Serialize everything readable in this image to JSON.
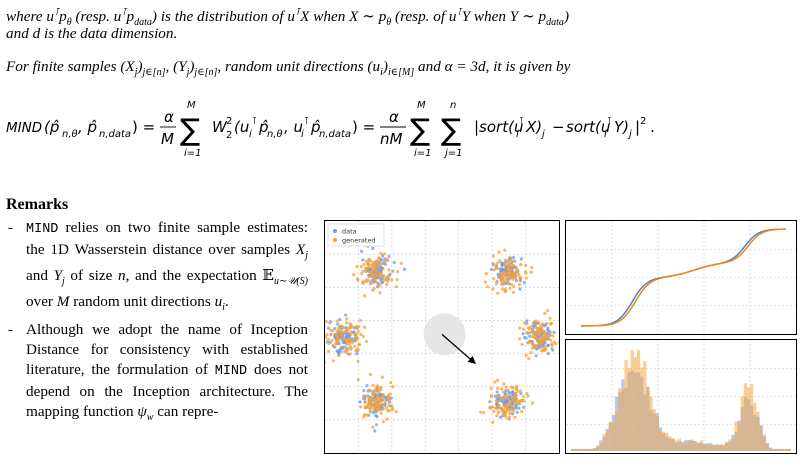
{
  "text": {
    "line1": "where u⊺p_θ (resp. u⊺p_data) is the distribution of u⊺X when X ∼ p_θ (resp. of u⊺Y when Y ∼ p_data)",
    "line2": "and d is the data dimension.",
    "line3": "For finite samples (X_j)_{j∈[n]}, (Y_j)_{j∈[n]}, random unit directions (u_i)_{i∈[M]} and α = 3d, it is given by",
    "equation": "MIND(p̂_{n,θ}, p̂_{n,data}) = α/M Σ_{i=1}^{M} W_2^2(u_i⊺p̂_{n,θ}, u_i⊺p̂_{n,data}) = α/(nM) Σ_{i=1}^{M} Σ_{j=1}^{n} |sort(u_i⊺X)_j − sort(u_i⊺Y)_j|^2 .",
    "remarks_heading": "Remarks",
    "bullet1": "MIND relies on two finite sample estimates: the 1D Wasserstein distance over samples X_j and Y_j of size n, and the expectation E_{u∼U(S)} over M random unit directions u_i.",
    "bullet2": "Although we adopt the name of Inception Distance for consistency with established literature, the formulation of MIND does not depend on the Inception architecture. The mapping function ψ_w can repre-"
  },
  "legend": {
    "data": "data",
    "generated": "generated"
  },
  "colors": {
    "data": "#6b9be8",
    "generated": "#f5a03a",
    "cdf_data": "#4a7fd6",
    "cdf_gen": "#f08a10",
    "hist_data": "#a9c2f0",
    "hist_gen": "#f5a540",
    "disk": "#e6e6e6"
  },
  "chart_data": [
    {
      "type": "scatter",
      "series": [
        {
          "name": "data",
          "clusters": [
            [
              -0.5,
              0.5
            ],
            [
              0.5,
              0.5
            ],
            [
              -0.75,
              0
            ],
            [
              0.75,
              0
            ],
            [
              -0.5,
              -0.5
            ],
            [
              0.5,
              -0.5
            ]
          ]
        },
        {
          "name": "generated",
          "clusters": [
            [
              -0.5,
              0.5
            ],
            [
              0.5,
              0.5
            ],
            [
              -0.75,
              0
            ],
            [
              0.75,
              0
            ],
            [
              -0.5,
              -0.5
            ],
            [
              0.5,
              -0.5
            ]
          ]
        }
      ],
      "grid": true,
      "legend_position": "top-left",
      "direction_arrow": {
        "from": [
          0.0,
          0.02
        ],
        "to": [
          0.25,
          -0.2
        ]
      }
    },
    {
      "type": "line",
      "description_series": [
        "data",
        "generated"
      ],
      "grid": true
    },
    {
      "type": "bar",
      "series": [
        "data",
        "generated"
      ],
      "grid": true
    }
  ]
}
